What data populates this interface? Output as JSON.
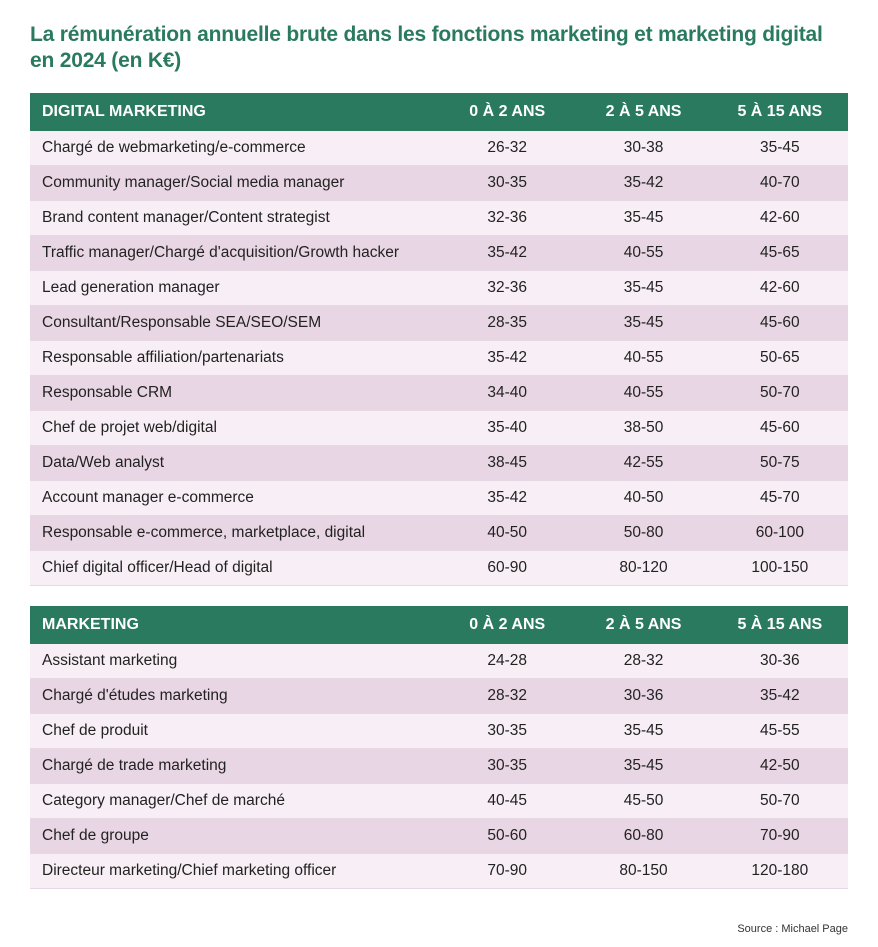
{
  "title": "La rémunération annuelle brute dans les fonctions marketing et  marketing digital en 2024 (en K€)",
  "source": "Source : Michael Page",
  "columns": [
    "0 À 2 ANS",
    "2 À 5 ANS",
    "5 À 15 ANS"
  ],
  "colors": {
    "header_bg": "#2a7a5f",
    "header_text": "#ffffff",
    "row_odd": "#f7eff5",
    "row_even": "#e9d6e4",
    "title_color": "#2a7a5f"
  },
  "sections": [
    {
      "heading": "DIGITAL MARKETING",
      "rows": [
        {
          "role": "Chargé de webmarketing/e-commerce",
          "v": [
            "26-32",
            "30-38",
            "35-45"
          ]
        },
        {
          "role": "Community manager/Social media manager",
          "v": [
            "30-35",
            "35-42",
            "40-70"
          ]
        },
        {
          "role": "Brand content manager/Content strategist",
          "v": [
            "32-36",
            "35-45",
            "42-60"
          ]
        },
        {
          "role": "Traffic manager/Chargé d'acquisition/Growth hacker",
          "v": [
            "35-42",
            "40-55",
            "45-65"
          ]
        },
        {
          "role": "Lead generation manager",
          "v": [
            "32-36",
            "35-45",
            "42-60"
          ]
        },
        {
          "role": "Consultant/Responsable SEA/SEO/SEM",
          "v": [
            "28-35",
            "35-45",
            "45-60"
          ]
        },
        {
          "role": "Responsable affiliation/partenariats",
          "v": [
            "35-42",
            "40-55",
            "50-65"
          ]
        },
        {
          "role": "Responsable CRM",
          "v": [
            "34-40",
            "40-55",
            "50-70"
          ]
        },
        {
          "role": "Chef de projet web/digital",
          "v": [
            "35-40",
            "38-50",
            "45-60"
          ]
        },
        {
          "role": "Data/Web analyst",
          "v": [
            "38-45",
            "42-55",
            "50-75"
          ]
        },
        {
          "role": "Account manager e-commerce",
          "v": [
            "35-42",
            "40-50",
            "45-70"
          ]
        },
        {
          "role": "Responsable e-commerce, marketplace, digital",
          "v": [
            "40-50",
            "50-80",
            "60-100"
          ]
        },
        {
          "role": "Chief digital officer/Head of digital",
          "v": [
            "60-90",
            "80-120",
            "100-150"
          ]
        }
      ]
    },
    {
      "heading": "MARKETING",
      "rows": [
        {
          "role": "Assistant marketing",
          "v": [
            "24-28",
            "28-32",
            "30-36"
          ]
        },
        {
          "role": "Chargé d'études marketing",
          "v": [
            "28-32",
            "30-36",
            "35-42"
          ]
        },
        {
          "role": "Chef de produit",
          "v": [
            "30-35",
            "35-45",
            "45-55"
          ]
        },
        {
          "role": "Chargé de trade marketing",
          "v": [
            "30-35",
            "35-45",
            "42-50"
          ]
        },
        {
          "role": "Category manager/Chef de marché",
          "v": [
            "40-45",
            "45-50",
            "50-70"
          ]
        },
        {
          "role": "Chef de groupe",
          "v": [
            "50-60",
            "60-80",
            "70-90"
          ]
        },
        {
          "role": "Directeur marketing/Chief marketing officer",
          "v": [
            "70-90",
            "80-150",
            "120-180"
          ]
        }
      ]
    }
  ]
}
